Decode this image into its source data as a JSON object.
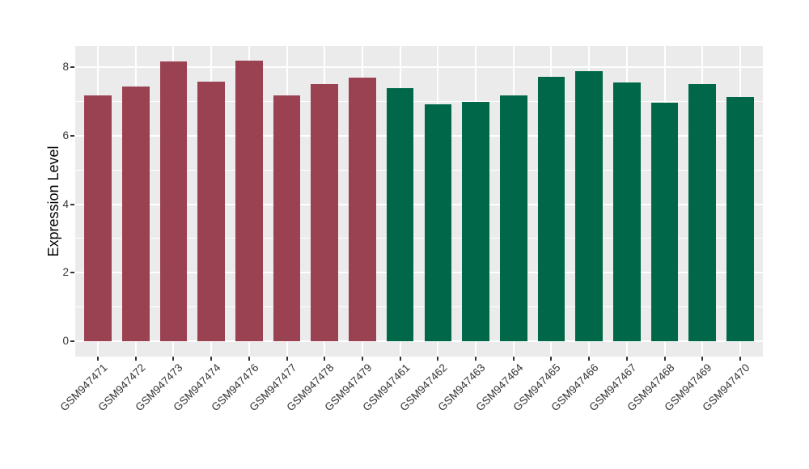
{
  "chart_data": {
    "type": "bar",
    "title": "",
    "xlabel": "",
    "ylabel": "Expression Level",
    "ylim": [
      -0.45,
      8.62
    ],
    "yticks": [
      0,
      2,
      4,
      6,
      8
    ],
    "yticks_minor": [
      1,
      3,
      5,
      7
    ],
    "grid": "major-and-minor-white-on-gray",
    "legend": "none",
    "panel_bg": "#EBEBEB",
    "grid_color": "#FFFFFF",
    "categories": [
      "GSM947471",
      "GSM947472",
      "GSM947473",
      "GSM947474",
      "GSM947476",
      "GSM947477",
      "GSM947478",
      "GSM947479",
      "GSM947461",
      "GSM947462",
      "GSM947463",
      "GSM947464",
      "GSM947465",
      "GSM947466",
      "GSM947467",
      "GSM947468",
      "GSM947469",
      "GSM947470"
    ],
    "values": [
      7.18,
      7.44,
      8.16,
      7.59,
      8.2,
      7.18,
      7.52,
      7.69,
      7.4,
      6.91,
      7.0,
      7.19,
      7.72,
      7.89,
      7.55,
      6.97,
      7.51,
      7.14
    ],
    "bar_groups": [
      "A",
      "A",
      "A",
      "A",
      "A",
      "A",
      "A",
      "A",
      "B",
      "B",
      "B",
      "B",
      "B",
      "B",
      "B",
      "B",
      "B",
      "B"
    ],
    "group_colors": {
      "A": "#9B4252",
      "B": "#006848"
    }
  }
}
